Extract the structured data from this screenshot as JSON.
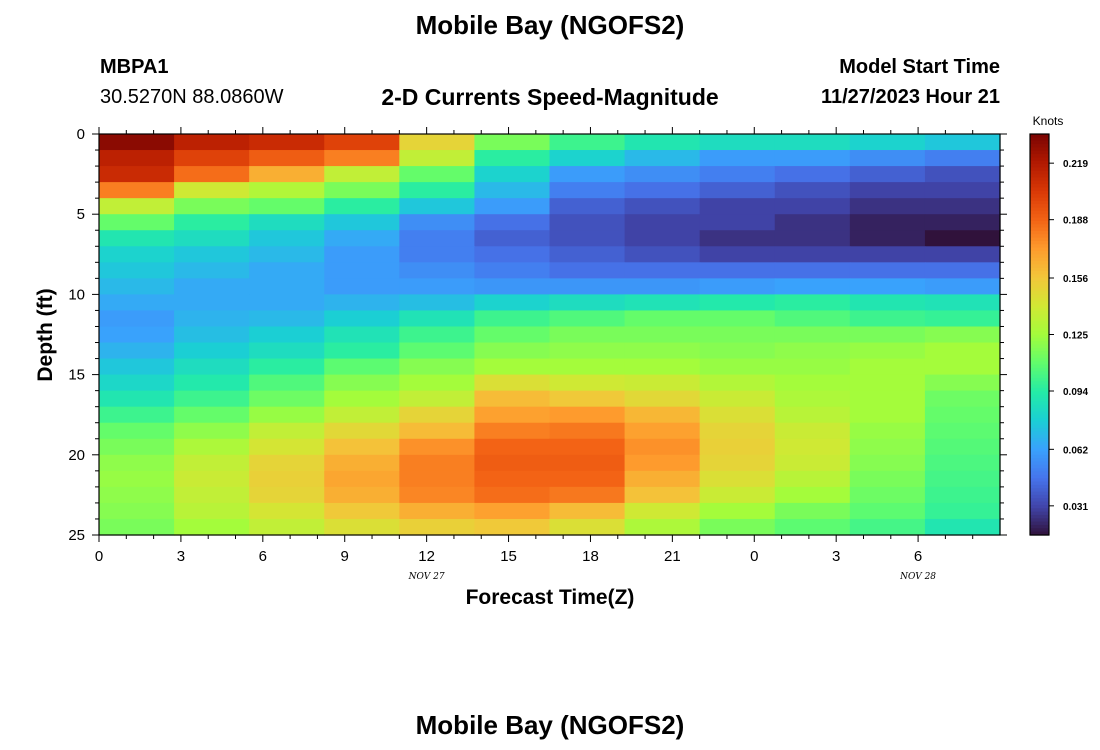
{
  "page": {
    "title": "Mobile Bay (NGOFS2)",
    "station_id": "MBPA1",
    "station_coords": "30.5270N  88.0860W",
    "chart_title": "2-D Currents Speed-Magnitude",
    "model_start_label": "Model Start Time",
    "model_start_value": "11/27/2023 Hour 21",
    "bottom_title": "Mobile Bay (NGOFS2)"
  },
  "chart_data": {
    "type": "heatmap",
    "title": "2-D Currents Speed-Magnitude",
    "xlabel": "Forecast Time(Z)",
    "ylabel": "Depth (ft)",
    "x_tick_labels": [
      "0",
      "3",
      "6",
      "9",
      "12",
      "15",
      "18",
      "21",
      "0",
      "3",
      "6"
    ],
    "x_date_labels": [
      {
        "label": "NOV 27",
        "at_hour": 12
      },
      {
        "label": "NOV 28",
        "at_hour": 30
      }
    ],
    "y_tick_labels": [
      "0",
      "5",
      "10",
      "15",
      "20",
      "25"
    ],
    "xlim_hours": [
      0,
      33
    ],
    "ylim_ft": [
      0,
      25
    ],
    "colorbar": {
      "title": "Knots",
      "ticks": [
        0.031,
        0.062,
        0.094,
        0.125,
        0.156,
        0.188,
        0.219
      ],
      "range": [
        0.015,
        0.235
      ]
    },
    "time_columns_hour": [
      0,
      3,
      6,
      9,
      12,
      15,
      18,
      21,
      24,
      27,
      30,
      33
    ],
    "depth_rows_ft": [
      0.5,
      1.5,
      2.5,
      3.5,
      4.5,
      5.5,
      6.5,
      7.5,
      8.5,
      9.5,
      10.5,
      11.5,
      12.5,
      13.5,
      14.5,
      15.5,
      16.5,
      17.5,
      18.5,
      19.5,
      20.5,
      21.5,
      22.5,
      23.5,
      24.5
    ],
    "values": [
      [
        0.23,
        0.215,
        0.21,
        0.2,
        0.15,
        0.115,
        0.1,
        0.09,
        0.085,
        0.085,
        0.08,
        0.075
      ],
      [
        0.215,
        0.2,
        0.19,
        0.18,
        0.135,
        0.095,
        0.08,
        0.07,
        0.06,
        0.06,
        0.055,
        0.05
      ],
      [
        0.21,
        0.185,
        0.165,
        0.135,
        0.11,
        0.08,
        0.06,
        0.055,
        0.05,
        0.045,
        0.04,
        0.035
      ],
      [
        0.18,
        0.14,
        0.13,
        0.115,
        0.095,
        0.07,
        0.05,
        0.045,
        0.04,
        0.035,
        0.03,
        0.03
      ],
      [
        0.135,
        0.115,
        0.11,
        0.095,
        0.075,
        0.06,
        0.04,
        0.035,
        0.03,
        0.03,
        0.025,
        0.025
      ],
      [
        0.11,
        0.095,
        0.085,
        0.075,
        0.055,
        0.045,
        0.035,
        0.03,
        0.03,
        0.025,
        0.02,
        0.02
      ],
      [
        0.09,
        0.085,
        0.075,
        0.065,
        0.05,
        0.04,
        0.035,
        0.03,
        0.025,
        0.025,
        0.02,
        0.015
      ],
      [
        0.08,
        0.075,
        0.07,
        0.06,
        0.05,
        0.045,
        0.04,
        0.035,
        0.03,
        0.03,
        0.03,
        0.03
      ],
      [
        0.075,
        0.07,
        0.065,
        0.06,
        0.055,
        0.05,
        0.045,
        0.045,
        0.045,
        0.045,
        0.045,
        0.045
      ],
      [
        0.07,
        0.065,
        0.065,
        0.06,
        0.06,
        0.058,
        0.058,
        0.058,
        0.06,
        0.062,
        0.062,
        0.06
      ],
      [
        0.065,
        0.065,
        0.065,
        0.068,
        0.072,
        0.08,
        0.085,
        0.088,
        0.092,
        0.095,
        0.09,
        0.088
      ],
      [
        0.06,
        0.068,
        0.07,
        0.078,
        0.088,
        0.1,
        0.105,
        0.11,
        0.11,
        0.105,
        0.1,
        0.098
      ],
      [
        0.062,
        0.072,
        0.078,
        0.088,
        0.1,
        0.11,
        0.115,
        0.115,
        0.115,
        0.115,
        0.115,
        0.118
      ],
      [
        0.068,
        0.078,
        0.085,
        0.095,
        0.108,
        0.118,
        0.12,
        0.12,
        0.118,
        0.12,
        0.122,
        0.125
      ],
      [
        0.075,
        0.085,
        0.095,
        0.108,
        0.118,
        0.125,
        0.125,
        0.125,
        0.122,
        0.122,
        0.125,
        0.125
      ],
      [
        0.082,
        0.092,
        0.105,
        0.118,
        0.125,
        0.145,
        0.14,
        0.138,
        0.13,
        0.125,
        0.125,
        0.118
      ],
      [
        0.09,
        0.1,
        0.112,
        0.125,
        0.135,
        0.16,
        0.155,
        0.148,
        0.138,
        0.128,
        0.125,
        0.112
      ],
      [
        0.1,
        0.11,
        0.122,
        0.135,
        0.15,
        0.17,
        0.172,
        0.162,
        0.145,
        0.132,
        0.125,
        0.11
      ],
      [
        0.11,
        0.12,
        0.135,
        0.148,
        0.16,
        0.18,
        0.182,
        0.17,
        0.15,
        0.138,
        0.122,
        0.108
      ],
      [
        0.115,
        0.128,
        0.142,
        0.158,
        0.175,
        0.188,
        0.188,
        0.175,
        0.152,
        0.14,
        0.12,
        0.106
      ],
      [
        0.12,
        0.135,
        0.15,
        0.165,
        0.18,
        0.19,
        0.19,
        0.172,
        0.15,
        0.138,
        0.118,
        0.104
      ],
      [
        0.122,
        0.138,
        0.152,
        0.168,
        0.18,
        0.188,
        0.188,
        0.165,
        0.145,
        0.132,
        0.115,
        0.102
      ],
      [
        0.12,
        0.135,
        0.15,
        0.165,
        0.178,
        0.185,
        0.182,
        0.158,
        0.138,
        0.125,
        0.112,
        0.1
      ],
      [
        0.118,
        0.132,
        0.142,
        0.155,
        0.165,
        0.17,
        0.16,
        0.14,
        0.125,
        0.115,
        0.108,
        0.098
      ],
      [
        0.115,
        0.125,
        0.135,
        0.145,
        0.152,
        0.155,
        0.145,
        0.128,
        0.115,
        0.108,
        0.102,
        0.09
      ]
    ]
  },
  "colors": {
    "colormap": [
      "#30123b",
      "#4145ab",
      "#4675ed",
      "#39a2fc",
      "#1bcfd4",
      "#24eca6",
      "#61fc6c",
      "#a4fc3b",
      "#d1e834",
      "#f3c63a",
      "#fe9b2d",
      "#f36315",
      "#d93806",
      "#b11901",
      "#7a0402"
    ]
  }
}
